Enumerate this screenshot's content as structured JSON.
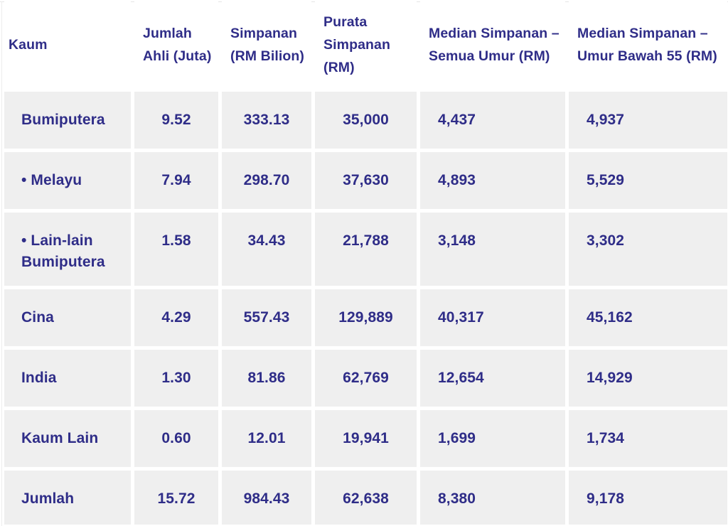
{
  "colors": {
    "text": "#2f2d88",
    "cell_background": "#efefef",
    "page_background": "#ffffff",
    "border_line": "#e6e6e6"
  },
  "table": {
    "columns": [
      "Kaum",
      "Jumlah Ahli (Juta)",
      "Simpanan (RM Bilion)",
      "Purata Simpanan (RM)",
      "Median Simpanan – Semua Umur (RM)",
      "Median Simpanan – Umur Bawah 55 (RM)"
    ],
    "rows": [
      {
        "label": "Bumiputera",
        "values": [
          "9.52",
          "333.13",
          "35,000",
          "4,437",
          "4,937"
        ]
      },
      {
        "label": "• Melayu",
        "values": [
          "7.94",
          "298.70",
          "37,630",
          "4,893",
          "5,529"
        ]
      },
      {
        "label": "• Lain-lain Bumiputera",
        "values": [
          "1.58",
          "34.43",
          "21,788",
          "3,148",
          "3,302"
        ]
      },
      {
        "label": "Cina",
        "values": [
          "4.29",
          "557.43",
          "129,889",
          "40,317",
          "45,162"
        ]
      },
      {
        "label": "India",
        "values": [
          "1.30",
          "81.86",
          "62,769",
          "12,654",
          "14,929"
        ]
      },
      {
        "label": "Kaum Lain",
        "values": [
          "0.60",
          "12.01",
          "19,941",
          "1,699",
          "1,734"
        ]
      },
      {
        "label": "Jumlah",
        "values": [
          "15.72",
          "984.43",
          "62,638",
          "8,380",
          "9,178"
        ]
      }
    ]
  },
  "chart_data": {
    "type": "table",
    "title": "",
    "columns": [
      "Kaum",
      "Jumlah Ahli (Juta)",
      "Simpanan (RM Bilion)",
      "Purata Simpanan (RM)",
      "Median Simpanan – Semua Umur (RM)",
      "Median Simpanan – Umur Bawah 55 (RM)"
    ],
    "rows": [
      [
        "Bumiputera",
        9.52,
        333.13,
        35000,
        4437,
        4937
      ],
      [
        "• Melayu",
        7.94,
        298.7,
        37630,
        4893,
        5529
      ],
      [
        "• Lain-lain Bumiputera",
        1.58,
        34.43,
        21788,
        3148,
        3302
      ],
      [
        "Cina",
        4.29,
        557.43,
        129889,
        40317,
        45162
      ],
      [
        "India",
        1.3,
        81.86,
        62769,
        12654,
        14929
      ],
      [
        "Kaum Lain",
        0.6,
        12.01,
        19941,
        1699,
        1734
      ],
      [
        "Jumlah",
        15.72,
        984.43,
        62638,
        8380,
        9178
      ]
    ]
  }
}
